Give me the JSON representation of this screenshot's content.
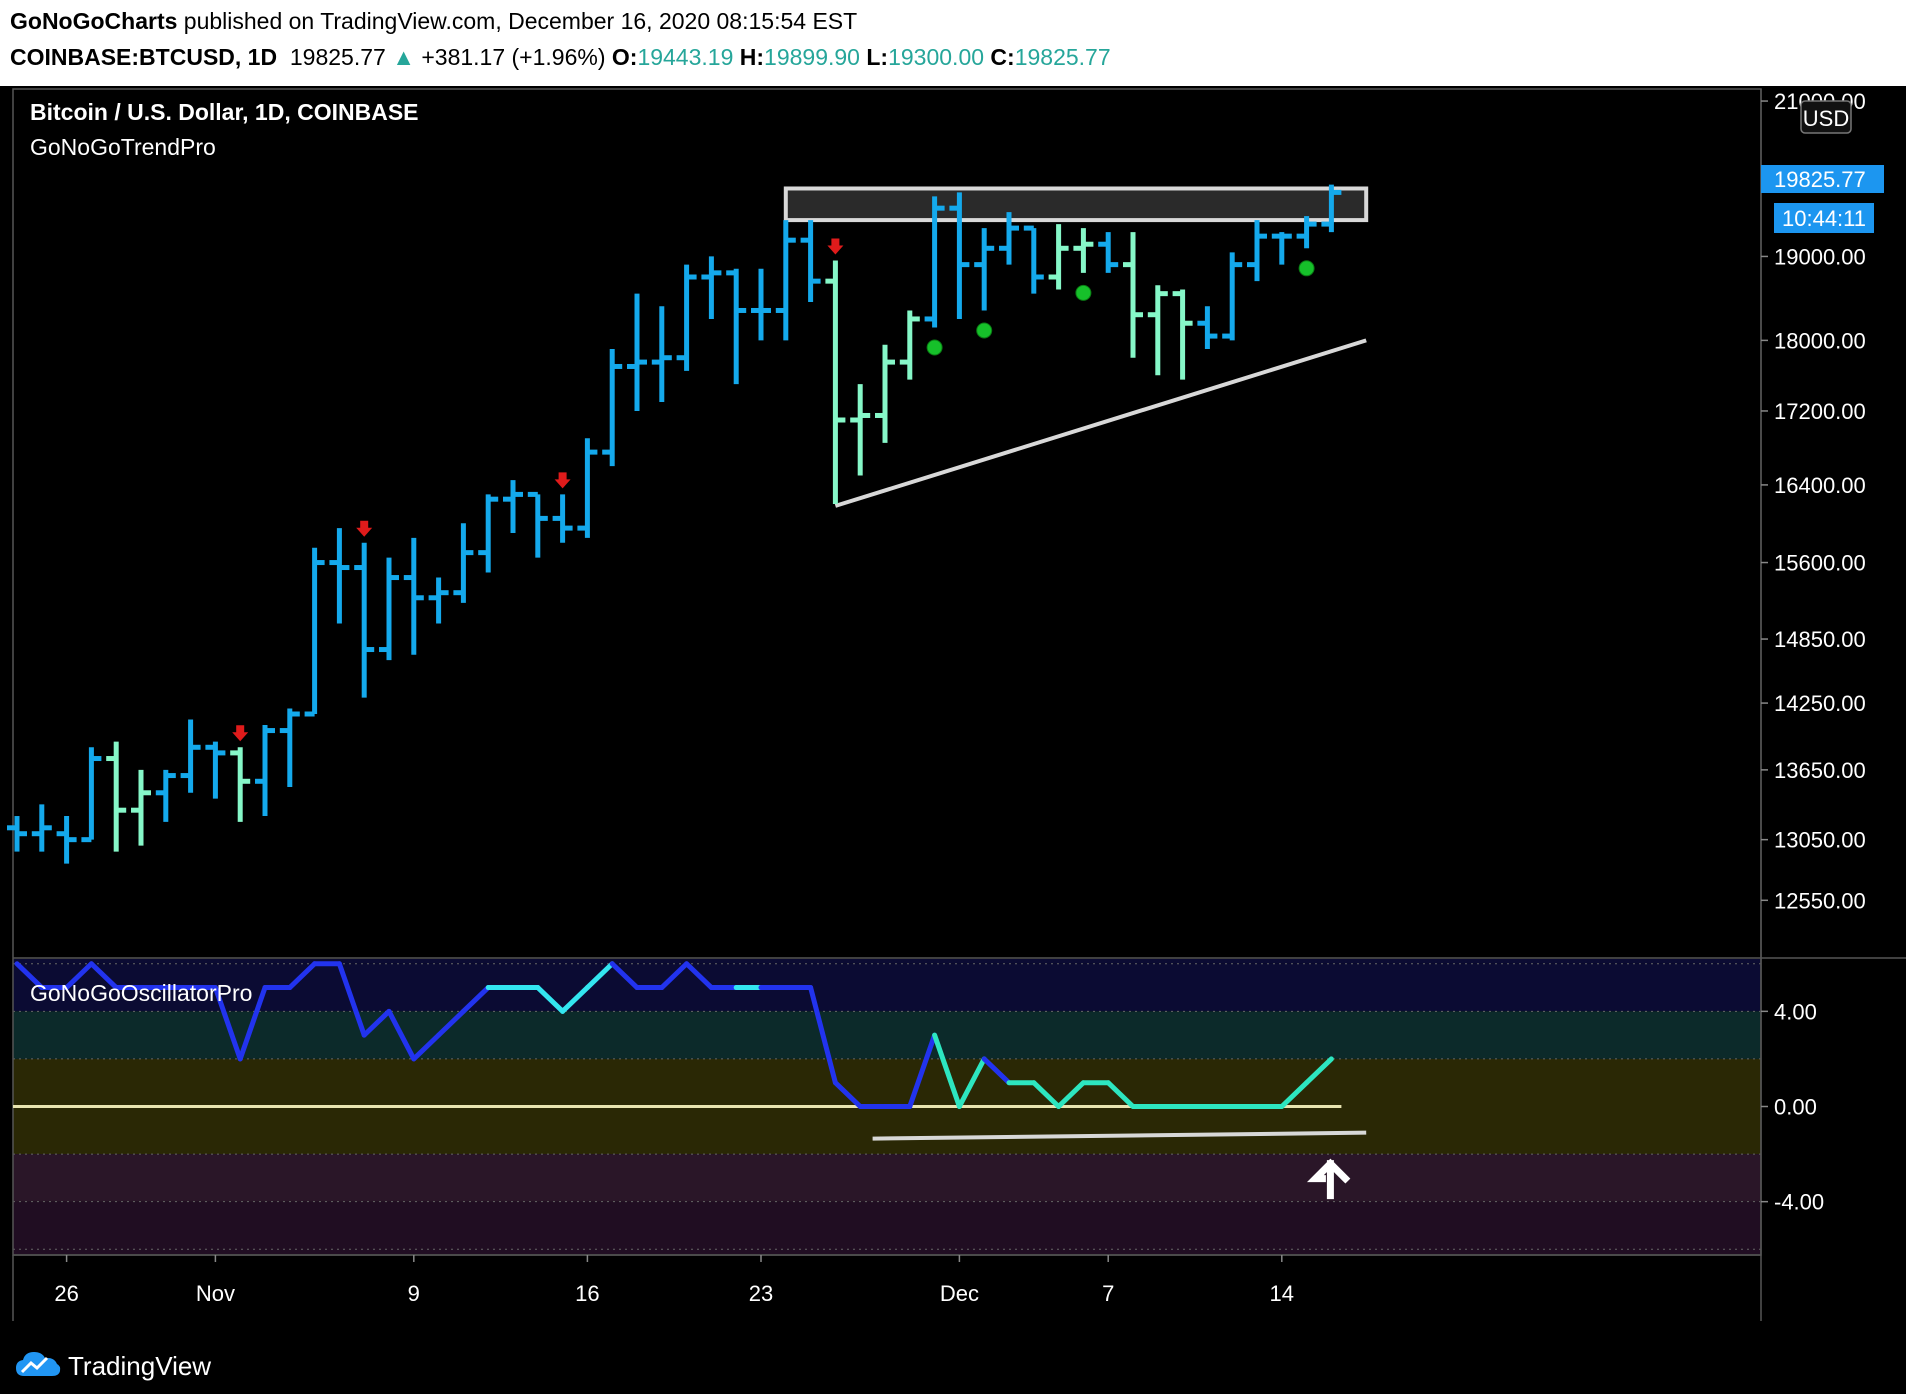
{
  "header": {
    "publisher": "GoNoGoCharts",
    "published_text": " published on TradingView.com, December 16, 2020 08:15:54 EST",
    "symbol": "COINBASE:BTCUSD, 1D",
    "last": "19825.77",
    "change_arrow": "▲",
    "change": "+381.17 (+1.96%)",
    "o_label": "O:",
    "o_value": "19443.19",
    "h_label": "H:",
    "h_value": "19899.90",
    "l_label": "L:",
    "l_value": "19300.00",
    "c_label": "C:",
    "c_value": "19825.77"
  },
  "footer": {
    "brand": "TradingView",
    "logo_icon": "tradingview-cloud-icon"
  },
  "chart_data": [
    {
      "type": "ohlc",
      "title": "Bitcoin / U.S. Dollar, 1D, COINBASE",
      "indicator": "GoNoGoTrendPro",
      "currency": "USD",
      "last_price_label": "19825.77",
      "countdown_label": "10:44:11",
      "ylim": [
        12100,
        21150
      ],
      "y_ticks": [
        12550,
        13050,
        13650,
        14250,
        14850,
        15600,
        16400,
        17200,
        18000,
        19000,
        21000
      ],
      "y_tick_labels": [
        "12550.00",
        "13050.00",
        "13650.00",
        "14250.00",
        "14850.00",
        "15600.00",
        "16400.00",
        "17200.00",
        "18000.00",
        "19000.00",
        "21000.00"
      ],
      "x_tick_labels": [
        {
          "i": 2,
          "label": "26"
        },
        {
          "i": 8,
          "label": "Nov"
        },
        {
          "i": 16,
          "label": "9"
        },
        {
          "i": 23,
          "label": "16"
        },
        {
          "i": 30,
          "label": "23"
        },
        {
          "i": 38,
          "label": "Dec"
        },
        {
          "i": 44,
          "label": "7"
        },
        {
          "i": 51,
          "label": "14"
        }
      ],
      "bar_colors": {
        "go": "#14a9ec",
        "weak": "#86f7c8"
      },
      "bars": [
        {
          "o": 13150,
          "h": 13250,
          "l": 12950,
          "c": 13100,
          "s": "go"
        },
        {
          "o": 13100,
          "h": 13350,
          "l": 12950,
          "c": 13150,
          "s": "go"
        },
        {
          "o": 13100,
          "h": 13250,
          "l": 12850,
          "c": 13050,
          "s": "go"
        },
        {
          "o": 13050,
          "h": 13850,
          "l": 13050,
          "c": 13750,
          "s": "go"
        },
        {
          "o": 13750,
          "h": 13900,
          "l": 12950,
          "c": 13300,
          "s": "weak"
        },
        {
          "o": 13300,
          "h": 13650,
          "l": 13000,
          "c": 13450,
          "s": "weak"
        },
        {
          "o": 13450,
          "h": 13650,
          "l": 13200,
          "c": 13600,
          "s": "go"
        },
        {
          "o": 13600,
          "h": 14100,
          "l": 13450,
          "c": 13850,
          "s": "go"
        },
        {
          "o": 13850,
          "h": 13900,
          "l": 13400,
          "c": 13800,
          "s": "go"
        },
        {
          "o": 13800,
          "h": 13850,
          "l": 13200,
          "c": 13550,
          "s": "weak"
        },
        {
          "o": 13550,
          "h": 14050,
          "l": 13250,
          "c": 14000,
          "s": "go"
        },
        {
          "o": 14000,
          "h": 14200,
          "l": 13500,
          "c": 14150,
          "s": "go"
        },
        {
          "o": 14150,
          "h": 15750,
          "l": 14150,
          "c": 15600,
          "s": "go"
        },
        {
          "o": 15600,
          "h": 15950,
          "l": 15000,
          "c": 15550,
          "s": "go"
        },
        {
          "o": 15550,
          "h": 15800,
          "l": 14300,
          "c": 14750,
          "s": "go"
        },
        {
          "o": 14750,
          "h": 15650,
          "l": 14650,
          "c": 15450,
          "s": "go"
        },
        {
          "o": 15450,
          "h": 15850,
          "l": 14700,
          "c": 15250,
          "s": "go"
        },
        {
          "o": 15250,
          "h": 15450,
          "l": 15000,
          "c": 15300,
          "s": "go"
        },
        {
          "o": 15300,
          "h": 16000,
          "l": 15200,
          "c": 15700,
          "s": "go"
        },
        {
          "o": 15700,
          "h": 16300,
          "l": 15500,
          "c": 16250,
          "s": "go"
        },
        {
          "o": 16250,
          "h": 16450,
          "l": 15900,
          "c": 16300,
          "s": "go"
        },
        {
          "o": 16300,
          "h": 16300,
          "l": 15650,
          "c": 16050,
          "s": "go"
        },
        {
          "o": 16050,
          "h": 16300,
          "l": 15800,
          "c": 15950,
          "s": "go"
        },
        {
          "o": 15950,
          "h": 16900,
          "l": 15850,
          "c": 16750,
          "s": "go"
        },
        {
          "o": 16750,
          "h": 17900,
          "l": 16600,
          "c": 17700,
          "s": "go"
        },
        {
          "o": 17700,
          "h": 18550,
          "l": 17200,
          "c": 17750,
          "s": "go"
        },
        {
          "o": 17750,
          "h": 18400,
          "l": 17300,
          "c": 17800,
          "s": "go"
        },
        {
          "o": 17800,
          "h": 18900,
          "l": 17650,
          "c": 18750,
          "s": "go"
        },
        {
          "o": 18750,
          "h": 19000,
          "l": 18250,
          "c": 18800,
          "s": "go"
        },
        {
          "o": 18800,
          "h": 18850,
          "l": 17500,
          "c": 18350,
          "s": "go"
        },
        {
          "o": 18350,
          "h": 18850,
          "l": 18000,
          "c": 18350,
          "s": "go"
        },
        {
          "o": 18350,
          "h": 19450,
          "l": 18000,
          "c": 19200,
          "s": "go"
        },
        {
          "o": 19200,
          "h": 19450,
          "l": 18450,
          "c": 18700,
          "s": "go"
        },
        {
          "o": 18700,
          "h": 18950,
          "l": 16200,
          "c": 17100,
          "s": "weak"
        },
        {
          "o": 17100,
          "h": 17500,
          "l": 16500,
          "c": 17150,
          "s": "weak"
        },
        {
          "o": 17150,
          "h": 17950,
          "l": 16850,
          "c": 17750,
          "s": "weak"
        },
        {
          "o": 17750,
          "h": 18350,
          "l": 17550,
          "c": 18250,
          "s": "weak"
        },
        {
          "o": 18250,
          "h": 19750,
          "l": 18150,
          "c": 19600,
          "s": "go"
        },
        {
          "o": 19600,
          "h": 19800,
          "l": 18250,
          "c": 18900,
          "s": "go"
        },
        {
          "o": 18900,
          "h": 19350,
          "l": 18350,
          "c": 19100,
          "s": "go"
        },
        {
          "o": 19100,
          "h": 19550,
          "l": 18900,
          "c": 19350,
          "s": "go"
        },
        {
          "o": 19350,
          "h": 19350,
          "l": 18550,
          "c": 18750,
          "s": "go"
        },
        {
          "o": 18750,
          "h": 19400,
          "l": 18600,
          "c": 19100,
          "s": "weak"
        },
        {
          "o": 19100,
          "h": 19350,
          "l": 18800,
          "c": 19150,
          "s": "weak"
        },
        {
          "o": 19150,
          "h": 19300,
          "l": 18800,
          "c": 18900,
          "s": "go"
        },
        {
          "o": 18900,
          "h": 19300,
          "l": 17800,
          "c": 18300,
          "s": "weak"
        },
        {
          "o": 18300,
          "h": 18650,
          "l": 17600,
          "c": 18550,
          "s": "weak"
        },
        {
          "o": 18550,
          "h": 18600,
          "l": 17550,
          "c": 18200,
          "s": "weak"
        },
        {
          "o": 18200,
          "h": 18400,
          "l": 17900,
          "c": 18050,
          "s": "go"
        },
        {
          "o": 18050,
          "h": 19050,
          "l": 18000,
          "c": 18900,
          "s": "go"
        },
        {
          "o": 18900,
          "h": 19450,
          "l": 18700,
          "c": 19250,
          "s": "go"
        },
        {
          "o": 19250,
          "h": 19300,
          "l": 18900,
          "c": 19250,
          "s": "go"
        },
        {
          "o": 19250,
          "h": 19500,
          "l": 19100,
          "c": 19400,
          "s": "go"
        },
        {
          "o": 19400,
          "h": 19900,
          "l": 19300,
          "c": 19800,
          "s": "go"
        }
      ],
      "countertrend_arrows_above_bar": [
        9,
        14,
        22,
        33
      ],
      "continuation_dots_below_bar": [
        37,
        39,
        43,
        52
      ],
      "resistance_zone": {
        "i1": 31,
        "i2": 54,
        "y_low": 19450,
        "y_high": 19850
      },
      "support_trendline": {
        "i1": 33,
        "y1": 16180,
        "i2": 54,
        "y2": 18000
      }
    },
    {
      "type": "line",
      "title": "GoNoGoOscillatorPro",
      "ylim": [
        -6.2,
        6.2
      ],
      "y_ticks": [
        4,
        0,
        -4
      ],
      "y_tick_labels": [
        "4.00",
        "0.00",
        "-4.00"
      ],
      "band_colors": [
        "#0b0b33",
        "#0c2a2a",
        "#2a2805",
        "#2a1628",
        "#200d22"
      ],
      "segment_colors": {
        "blue": "#2233ee",
        "cyan": "#33e6f0",
        "aqua": "#2de6c0"
      },
      "values": [
        6,
        5,
        5,
        6,
        5,
        5,
        5,
        5,
        5,
        2,
        5,
        5,
        6,
        6,
        3,
        4,
        2,
        3,
        4,
        5,
        5,
        5,
        4,
        5,
        6,
        5,
        5,
        6,
        5,
        5,
        5,
        5,
        5,
        1,
        0,
        0,
        0,
        3,
        0,
        2,
        1,
        1,
        0,
        1,
        1,
        0,
        0,
        0,
        0,
        0,
        0,
        0,
        1,
        2
      ],
      "colors": [
        "blue",
        "blue",
        "blue",
        "blue",
        "blue",
        "blue",
        "blue",
        "blue",
        "blue",
        "blue",
        "blue",
        "blue",
        "blue",
        "blue",
        "blue",
        "blue",
        "blue",
        "blue",
        "blue",
        "blue",
        "cyan",
        "cyan",
        "cyan",
        "cyan",
        "cyan",
        "blue",
        "blue",
        "blue",
        "blue",
        "blue",
        "cyan",
        "blue",
        "blue",
        "blue",
        "blue",
        "blue",
        "blue",
        "blue",
        "aqua",
        "aqua",
        "blue",
        "aqua",
        "aqua",
        "aqua",
        "aqua",
        "aqua",
        "aqua",
        "aqua",
        "aqua",
        "aqua",
        "aqua",
        "aqua",
        "aqua",
        "aqua"
      ],
      "zero_line": {
        "i1": 0,
        "i2": 53,
        "y": 0
      },
      "support_line": {
        "i1": 34.5,
        "y1": -1.35,
        "i2": 54,
        "y2": -1.1
      },
      "up_arrow_at_bar": 53
    }
  ]
}
